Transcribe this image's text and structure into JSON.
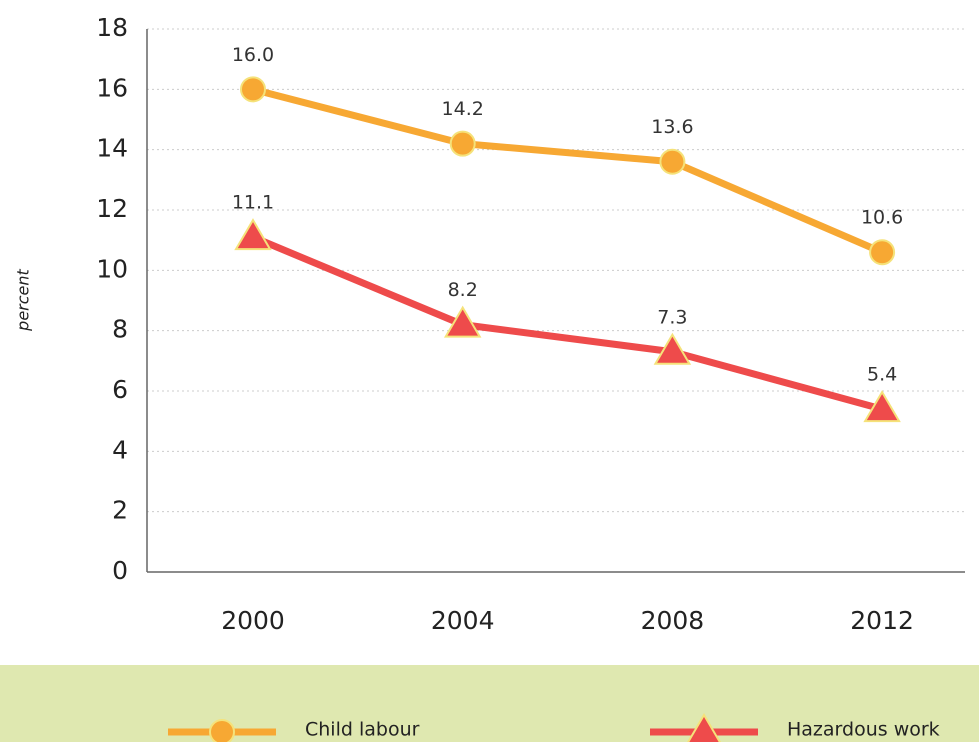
{
  "chart_data": {
    "type": "line",
    "y_label": "percent",
    "categories": [
      "2000",
      "2004",
      "2008",
      "2012"
    ],
    "series": [
      {
        "name": "Child labour",
        "color": "#f7a833",
        "marker": "circle",
        "values": [
          16.0,
          14.2,
          13.6,
          10.6
        ],
        "value_labels": [
          "16.0",
          "14.2",
          "13.6",
          "10.6"
        ]
      },
      {
        "name": "Hazardous work",
        "color": "#ee4b4b",
        "marker": "triangle",
        "values": [
          11.1,
          8.2,
          7.3,
          5.4
        ]
      }
    ],
    "ylim": [
      0,
      18
    ],
    "yticks": [
      0,
      2,
      4,
      6,
      8,
      10,
      12,
      14,
      16,
      18
    ],
    "grid": true,
    "legend": "bottom"
  }
}
